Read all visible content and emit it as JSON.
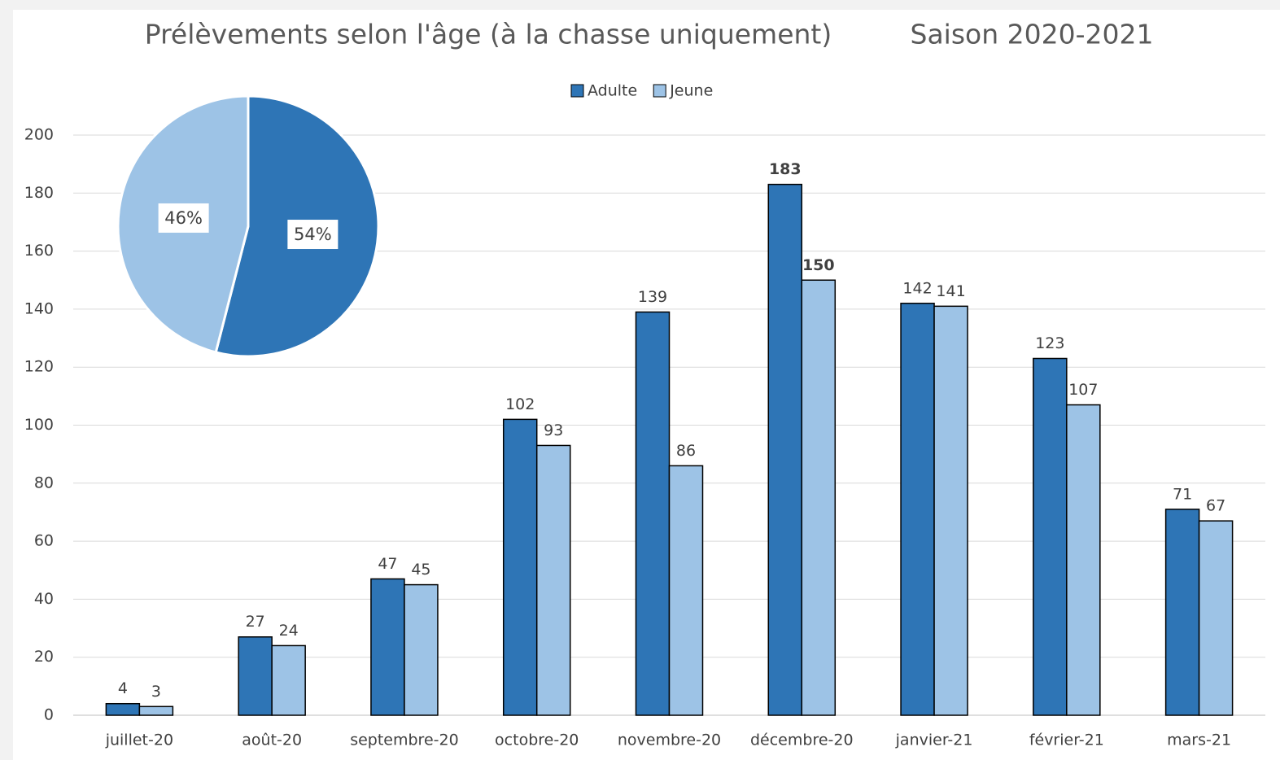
{
  "chart_data": [
    {
      "type": "bar",
      "title": "Prélèvements selon l'âge (à la chasse uniquement)",
      "subtitle": "Saison 2020-2021",
      "categories": [
        "juillet-20",
        "août-20",
        "septembre-20",
        "octobre-20",
        "novembre-20",
        "décembre-20",
        "janvier-21",
        "février-21",
        "mars-21"
      ],
      "series": [
        {
          "name": "Adulte",
          "color": "#2e75b6",
          "values": [
            4,
            27,
            47,
            102,
            139,
            183,
            142,
            123,
            71
          ]
        },
        {
          "name": "Jeune",
          "color": "#9dc3e6",
          "values": [
            3,
            24,
            45,
            93,
            86,
            150,
            141,
            107,
            67
          ]
        }
      ],
      "ylim": [
        0,
        200
      ],
      "yticks": [
        0,
        20,
        40,
        60,
        80,
        100,
        120,
        140,
        160,
        180,
        200
      ],
      "grid": true,
      "legend": "top"
    },
    {
      "type": "pie",
      "categories": [
        "Adulte",
        "Jeune"
      ],
      "values": [
        54,
        46
      ],
      "value_labels": [
        "54%",
        "46%"
      ],
      "colors": [
        "#2e75b6",
        "#9dc3e6"
      ]
    }
  ]
}
